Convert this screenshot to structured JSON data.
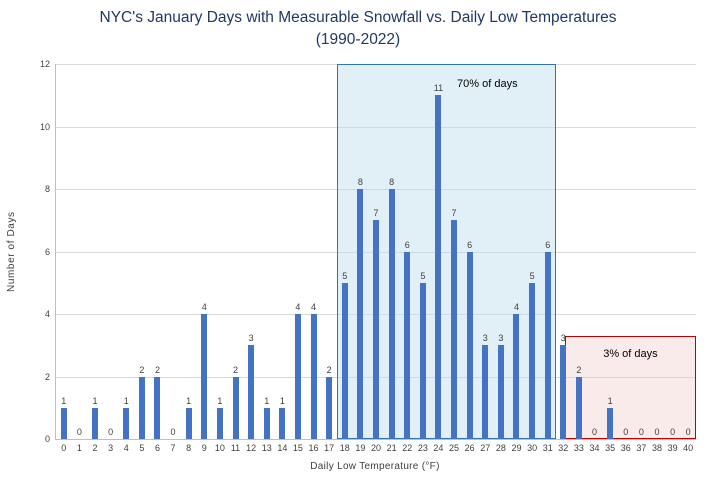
{
  "title": {
    "line1": "NYC's January Days with Measurable Snowfall vs. Daily Low Temperatures",
    "line2": "(1990-2022)"
  },
  "chart_data": {
    "type": "bar",
    "title": "NYC's January Days with Measurable Snowfall vs. Daily Low Temperatures (1990-2022)",
    "xlabel": "Daily Low Temperature (°F)",
    "ylabel": "Number of Days",
    "categories": [
      0,
      1,
      2,
      3,
      4,
      5,
      6,
      7,
      8,
      9,
      10,
      11,
      12,
      13,
      14,
      15,
      16,
      17,
      18,
      19,
      20,
      21,
      22,
      23,
      24,
      25,
      26,
      27,
      28,
      29,
      30,
      31,
      32,
      33,
      34,
      35,
      36,
      37,
      38,
      39,
      40
    ],
    "values": [
      1,
      0,
      1,
      0,
      1,
      2,
      2,
      0,
      1,
      4,
      1,
      2,
      3,
      1,
      1,
      4,
      4,
      2,
      5,
      8,
      7,
      8,
      6,
      5,
      11,
      7,
      6,
      3,
      3,
      4,
      5,
      6,
      3,
      2,
      0,
      1,
      0,
      0,
      0,
      0,
      0
    ],
    "ylim": [
      0,
      12
    ],
    "yticks": [
      0,
      2,
      4,
      6,
      8,
      10,
      12
    ],
    "grid": "horizontal",
    "legend": "none",
    "bar_color": "#4472C4",
    "tick_color": "#404040",
    "grid_color": "#D9D9D9",
    "title_color": "#1F3864",
    "regions": [
      {
        "label": "70% of days",
        "x_start": 18,
        "x_end": 32,
        "y_top": 12,
        "fill": "rgba(189, 222, 238, 0.45)",
        "border": "#2E75B6"
      },
      {
        "label": "3% of days",
        "x_start": 32.6,
        "x_end": 41,
        "y_top": 3.3,
        "fill": "rgba(242, 198, 198, 0.35)",
        "border": "#C00000"
      }
    ]
  }
}
